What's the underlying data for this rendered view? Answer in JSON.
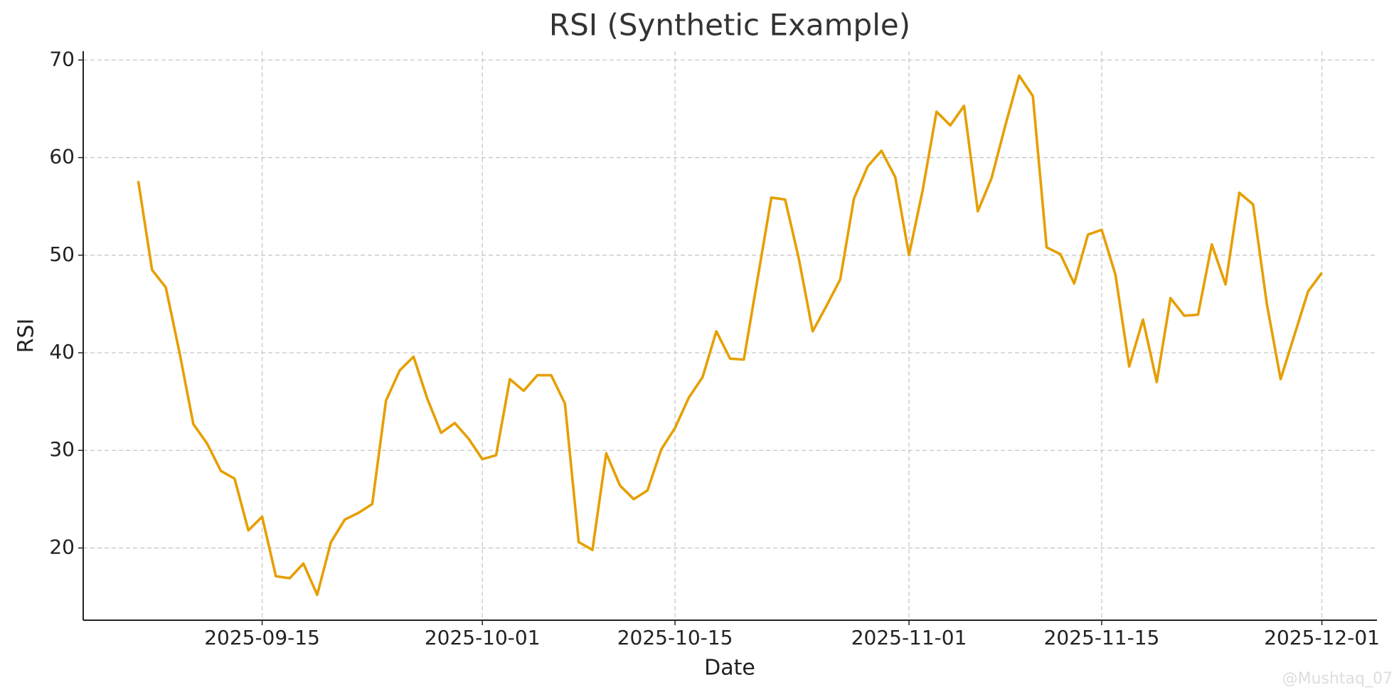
{
  "chart_data": {
    "type": "line",
    "title": "RSI (Synthetic Example)",
    "x_label": "Date",
    "y_label": "RSI",
    "x": [
      "2025-09-06",
      "2025-09-07",
      "2025-09-08",
      "2025-09-09",
      "2025-09-10",
      "2025-09-11",
      "2025-09-12",
      "2025-09-13",
      "2025-09-14",
      "2025-09-15",
      "2025-09-16",
      "2025-09-17",
      "2025-09-18",
      "2025-09-19",
      "2025-09-20",
      "2025-09-21",
      "2025-09-22",
      "2025-09-23",
      "2025-09-24",
      "2025-09-25",
      "2025-09-26",
      "2025-09-27",
      "2025-09-28",
      "2025-09-29",
      "2025-09-30",
      "2025-10-01",
      "2025-10-02",
      "2025-10-03",
      "2025-10-04",
      "2025-10-05",
      "2025-10-06",
      "2025-10-07",
      "2025-10-08",
      "2025-10-09",
      "2025-10-10",
      "2025-10-11",
      "2025-10-12",
      "2025-10-13",
      "2025-10-14",
      "2025-10-15",
      "2025-10-16",
      "2025-10-17",
      "2025-10-18",
      "2025-10-19",
      "2025-10-20",
      "2025-10-21",
      "2025-10-22",
      "2025-10-23",
      "2025-10-24",
      "2025-10-25",
      "2025-10-26",
      "2025-10-27",
      "2025-10-28",
      "2025-10-29",
      "2025-10-30",
      "2025-10-31",
      "2025-11-01",
      "2025-11-02",
      "2025-11-03",
      "2025-11-04",
      "2025-11-05",
      "2025-11-06",
      "2025-11-07",
      "2025-11-08",
      "2025-11-09",
      "2025-11-10",
      "2025-11-11",
      "2025-11-12",
      "2025-11-13",
      "2025-11-14",
      "2025-11-15",
      "2025-11-16",
      "2025-11-17",
      "2025-11-18",
      "2025-11-19",
      "2025-11-20",
      "2025-11-21",
      "2025-11-22",
      "2025-11-23",
      "2025-11-24",
      "2025-11-25",
      "2025-11-26",
      "2025-11-27",
      "2025-11-28",
      "2025-11-29",
      "2025-11-30",
      "2025-12-01"
    ],
    "series": [
      {
        "name": "RSI",
        "color": "#e69f00",
        "values": [
          57.6,
          48.5,
          46.7,
          40.0,
          32.7,
          30.7,
          27.9,
          27.1,
          21.8,
          23.2,
          17.1,
          16.9,
          18.4,
          15.2,
          20.6,
          22.9,
          23.6,
          24.5,
          35.1,
          38.2,
          39.6,
          35.3,
          31.8,
          32.8,
          31.2,
          29.1,
          29.5,
          37.3,
          36.1,
          37.7,
          37.7,
          34.8,
          20.6,
          19.8,
          29.7,
          26.4,
          25.0,
          25.9,
          30.1,
          32.3,
          35.4,
          37.5,
          42.2,
          39.4,
          39.3,
          47.6,
          55.9,
          55.7,
          49.6,
          42.2,
          44.8,
          47.5,
          55.8,
          59.1,
          60.7,
          58.0,
          50.0,
          56.7,
          64.7,
          63.3,
          65.3,
          54.5,
          57.9,
          63.3,
          68.4,
          66.3,
          50.8,
          50.1,
          47.1,
          52.1,
          52.6,
          48.0,
          38.6,
          43.4,
          37.0,
          45.6,
          43.8,
          43.9,
          51.1,
          47.0,
          56.4,
          55.2,
          45.0,
          37.3,
          41.8,
          46.3,
          48.2
        ]
      }
    ],
    "xlim": [
      "2025-09-02",
      "2025-12-05"
    ],
    "xticks": [
      "2025-09-15",
      "2025-10-01",
      "2025-10-15",
      "2025-11-01",
      "2025-11-15",
      "2025-12-01"
    ],
    "ylim": [
      12.6,
      70.9
    ],
    "yticks": [
      20,
      30,
      40,
      50,
      60,
      70
    ],
    "grid": true,
    "watermark": "@Mushtaq_07"
  }
}
